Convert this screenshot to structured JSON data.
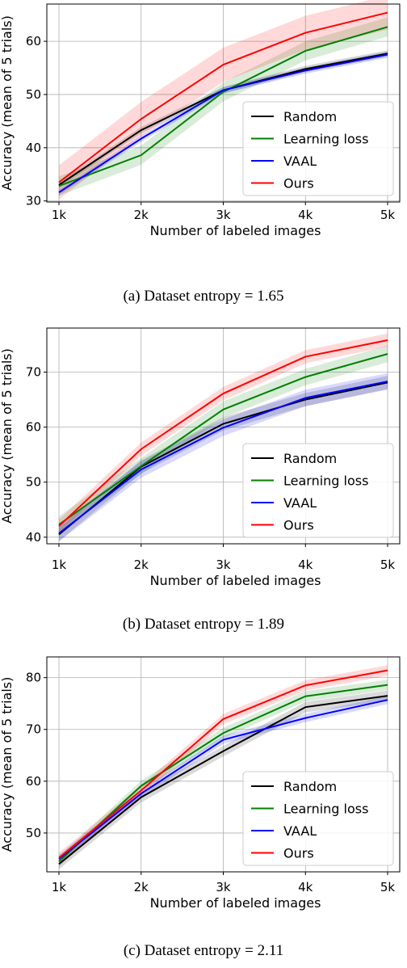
{
  "chart_data": [
    {
      "type": "line",
      "caption": "(a) Dataset entropy = 1.65",
      "xlabel": "Number of labeled images",
      "ylabel": "Accuracy (mean of 5 trials)",
      "categories": [
        "1k",
        "2k",
        "3k",
        "4k",
        "5k"
      ],
      "ylim": [
        29.8,
        67.0
      ],
      "yticks": [
        30,
        40,
        50,
        60
      ],
      "grid": true,
      "legend_position": "lower-right",
      "series": [
        {
          "name": "Random",
          "color": "#000000",
          "values": [
            33.0,
            43.3,
            50.8,
            54.8,
            57.7
          ],
          "band": 0.6
        },
        {
          "name": "Learning loss",
          "color": "#008000",
          "values": [
            32.8,
            38.6,
            50.5,
            58.2,
            62.7
          ],
          "band": 1.8
        },
        {
          "name": "VAAL",
          "color": "#0000ff",
          "values": [
            31.6,
            41.7,
            50.8,
            54.5,
            57.5
          ],
          "band": 0.6
        },
        {
          "name": "Ours",
          "color": "#ff0000",
          "values": [
            33.5,
            45.4,
            55.6,
            61.6,
            65.4
          ],
          "band": 3.2
        }
      ]
    },
    {
      "type": "line",
      "caption": "(b) Dataset entropy = 1.89",
      "xlabel": "Number of labeled images",
      "ylabel": "Accuracy (mean of 5 trials)",
      "categories": [
        "1k",
        "2k",
        "3k",
        "4k",
        "5k"
      ],
      "ylim": [
        38.8,
        78.0
      ],
      "yticks": [
        40,
        50,
        60,
        70
      ],
      "grid": true,
      "legend_position": "lower-right",
      "series": [
        {
          "name": "Random",
          "color": "#000000",
          "values": [
            40.5,
            52.8,
            60.6,
            65.0,
            68.1
          ],
          "band": 1.2
        },
        {
          "name": "Learning loss",
          "color": "#008000",
          "values": [
            42.3,
            52.9,
            63.2,
            69.1,
            73.3
          ],
          "band": 1.5
        },
        {
          "name": "VAAL",
          "color": "#0000ff",
          "values": [
            40.7,
            52.3,
            59.9,
            65.3,
            68.3
          ],
          "band": 1.5
        },
        {
          "name": "Ours",
          "color": "#ff0000",
          "values": [
            42.0,
            56.0,
            66.1,
            72.8,
            75.8
          ],
          "band": 1.2
        }
      ]
    },
    {
      "type": "line",
      "caption": "(c) Dataset entropy = 2.11",
      "xlabel": "Number of labeled images",
      "ylabel": "Accuracy (mean of 5 trials)",
      "categories": [
        "1k",
        "2k",
        "3k",
        "4k",
        "5k"
      ],
      "ylim": [
        42.5,
        84.0
      ],
      "yticks": [
        50,
        60,
        70,
        80
      ],
      "grid": true,
      "legend_position": "lower-right",
      "series": [
        {
          "name": "Random",
          "color": "#000000",
          "values": [
            44.0,
            56.9,
            65.8,
            74.3,
            76.5
          ],
          "band": 1.0
        },
        {
          "name": "Learning loss",
          "color": "#008000",
          "values": [
            44.5,
            59.1,
            69.3,
            76.4,
            78.6
          ],
          "band": 1.0
        },
        {
          "name": "VAAL",
          "color": "#0000ff",
          "values": [
            45.0,
            57.6,
            68.0,
            72.2,
            75.7
          ],
          "band": 0.8
        },
        {
          "name": "Ours",
          "color": "#ff0000",
          "values": [
            45.2,
            58.2,
            72.0,
            78.5,
            81.4
          ],
          "band": 1.0
        }
      ]
    }
  ]
}
